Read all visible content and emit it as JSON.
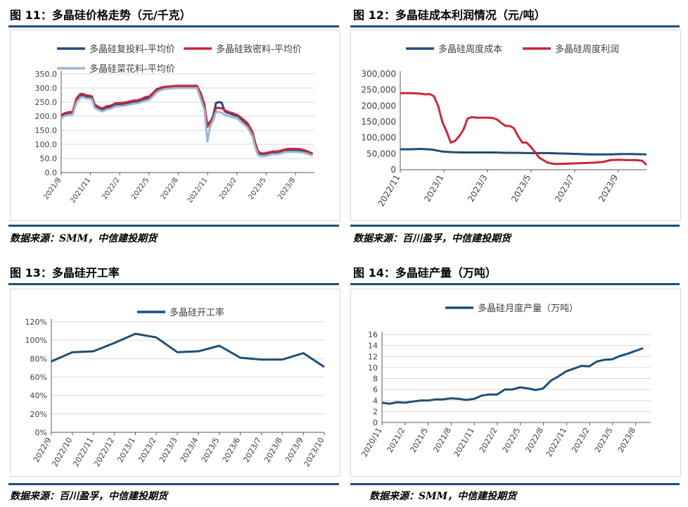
{
  "panels": [
    {
      "title": "图 11：多晶硅价格走势（元/千克）",
      "source": "数据来源：SMM，中信建投期货"
    },
    {
      "title": "图 12：多晶硅成本利润情况（元/吨）",
      "source": "数据来源：百川盈孚，中信建投期货"
    },
    {
      "title": "图 13：多晶硅开工率",
      "source": "数据来源：百川盈孚，中信建投期货"
    },
    {
      "title": "图 14：多晶硅产量（万吨）",
      "source": "数据来源：SMM，中信建投期货"
    }
  ],
  "colors": {
    "rule": "#1f4e79",
    "navy": "#1f4e79",
    "red": "#c8283d",
    "light": "#9db7d0",
    "grid": "#d9d9d9",
    "axis": "#595959"
  },
  "chart_data": [
    {
      "type": "line",
      "ylim": [
        0,
        350
      ],
      "yticks": [
        "0.0",
        "50.0",
        "100.0",
        "150.0",
        "200.0",
        "250.0",
        "300.0",
        "350.0"
      ],
      "x_tick_labels": [
        "2021/8",
        "2021/11",
        "2022/2",
        "2022/5",
        "2022/8",
        "2022/11",
        "2023/2",
        "2023/5",
        "2023/8"
      ],
      "x_range": [
        0,
        26.5
      ],
      "legend": "top",
      "grid": true,
      "series": [
        {
          "name": "多晶硅复投料-平均价",
          "color": "#1f4e79",
          "x": [
            0,
            0.3,
            0.7,
            1.2,
            1.6,
            2,
            2.3,
            2.6,
            2.9,
            3.2,
            3.5,
            3.9,
            4.3,
            4.8,
            5.1,
            5.4,
            5.7,
            6.1,
            6.5,
            7,
            7.5,
            8,
            8.4,
            8.8,
            9.2,
            9.6,
            10,
            10.4,
            10.8,
            11.4,
            12,
            12.6,
            13.2,
            13.7,
            14.2,
            14.6,
            15,
            15.3,
            15.6,
            15.9,
            16.2,
            16.5,
            16.8,
            17.1,
            17.3,
            17.6,
            18,
            18.5,
            19,
            19.5,
            20,
            20.3,
            20.6,
            20.9,
            21.2,
            21.5,
            21.8,
            22.2,
            22.6,
            23,
            23.4,
            23.8,
            24.2,
            24.6,
            25,
            25.4,
            25.8,
            26.3
          ],
          "values": [
            199,
            206,
            210,
            212,
            255,
            274,
            275,
            270,
            270,
            268,
            238,
            229,
            223,
            230,
            232,
            236,
            241,
            242,
            243,
            246,
            250,
            252,
            256,
            262,
            265,
            277,
            292,
            298,
            302,
            303,
            305,
            305,
            305,
            305,
            305,
            270,
            230,
            170,
            180,
            200,
            247,
            250,
            248,
            218,
            213,
            210,
            205,
            200,
            185,
            170,
            140,
            100,
            70,
            66,
            66,
            66,
            70,
            72,
            72,
            75,
            80,
            80,
            80,
            80,
            78,
            75,
            70,
            63
          ]
        },
        {
          "name": "多晶硅致密料-平均价",
          "color": "#c8283d",
          "x": [
            0,
            0.3,
            0.7,
            1.2,
            1.6,
            2,
            2.3,
            2.6,
            2.9,
            3.2,
            3.5,
            3.9,
            4.3,
            4.8,
            5.1,
            5.4,
            5.7,
            6.1,
            6.5,
            7,
            7.5,
            8,
            8.4,
            8.8,
            9.2,
            9.6,
            10,
            10.4,
            10.8,
            11.4,
            12,
            12.6,
            13.2,
            13.7,
            14.2,
            14.6,
            15,
            15.3,
            15.6,
            15.9,
            16.2,
            16.5,
            16.8,
            17.1,
            17.3,
            17.6,
            18,
            18.5,
            19,
            19.5,
            20,
            20.3,
            20.6,
            20.9,
            21.2,
            21.5,
            21.8,
            22.2,
            22.6,
            23,
            23.4,
            23.8,
            24.2,
            24.6,
            25,
            25.4,
            25.8,
            26.3
          ],
          "values": [
            203,
            210,
            214,
            216,
            263,
            279,
            279,
            274,
            273,
            271,
            242,
            233,
            228,
            236,
            237,
            241,
            246,
            247,
            248,
            251,
            255,
            257,
            261,
            268,
            270,
            282,
            296,
            301,
            304,
            306,
            308,
            308,
            308,
            308,
            308,
            282,
            240,
            162,
            178,
            195,
            230,
            229,
            228,
            222,
            218,
            214,
            210,
            203,
            190,
            175,
            145,
            105,
            75,
            68,
            68,
            70,
            72,
            75,
            75,
            78,
            82,
            84,
            84,
            84,
            83,
            80,
            75,
            67
          ]
        },
        {
          "name": "多晶硅菜花料-平均价",
          "color": "#9db7d0",
          "x": [
            0,
            0.3,
            0.7,
            1.2,
            1.6,
            2,
            2.3,
            2.6,
            2.9,
            3.2,
            3.5,
            3.9,
            4.3,
            4.8,
            5.1,
            5.4,
            5.7,
            6.1,
            6.5,
            7,
            7.5,
            8,
            8.4,
            8.8,
            9.2,
            9.6,
            10,
            10.4,
            10.8,
            11.4,
            12,
            12.6,
            13.2,
            13.7,
            14.2,
            14.6,
            15,
            15.3,
            15.6,
            15.9,
            16.2,
            16.5,
            16.8,
            17.1,
            17.3,
            17.6,
            18,
            18.5,
            19,
            19.5,
            20,
            20.3,
            20.6,
            20.9,
            21.2,
            21.5,
            21.8,
            22.2,
            22.6,
            23,
            23.4,
            23.8,
            24.2,
            24.6,
            25,
            25.4,
            25.8,
            26.3
          ],
          "values": [
            193,
            200,
            204,
            206,
            248,
            266,
            268,
            263,
            262,
            260,
            230,
            222,
            217,
            224,
            226,
            230,
            235,
            236,
            237,
            240,
            244,
            246,
            250,
            255,
            258,
            270,
            285,
            292,
            296,
            298,
            300,
            300,
            300,
            300,
            300,
            262,
            220,
            110,
            165,
            185,
            215,
            215,
            212,
            205,
            202,
            200,
            196,
            190,
            175,
            160,
            130,
            90,
            62,
            58,
            58,
            60,
            63,
            65,
            65,
            68,
            72,
            73,
            73,
            73,
            72,
            70,
            66,
            60
          ]
        }
      ]
    },
    {
      "type": "line",
      "ylim": [
        0,
        300000
      ],
      "yticks": [
        "0",
        "50,000",
        "100,000",
        "150,000",
        "200,000",
        "250,000",
        "300,000"
      ],
      "x_tick_labels": [
        "2022/11",
        "2023/1",
        "2023/3",
        "2023/5",
        "2023/7",
        "2023/9"
      ],
      "x_range": [
        0,
        11.7
      ],
      "legend": "top",
      "grid": false,
      "series": [
        {
          "name": "多晶硅周度成本",
          "color": "#1f4e79",
          "x": [
            0,
            0.5,
            1,
            1.5,
            2,
            2.5,
            3,
            3.5,
            4,
            4.5,
            5,
            5.5,
            6,
            6.5,
            7,
            7.5,
            8,
            8.5,
            9,
            9.5,
            10,
            10.5,
            11,
            11.7
          ],
          "values": [
            64000,
            64000,
            65000,
            63000,
            57000,
            55000,
            54000,
            54000,
            54000,
            54000,
            53000,
            53000,
            52000,
            52000,
            52000,
            51000,
            50000,
            49000,
            48000,
            48000,
            48000,
            49000,
            49000,
            48000
          ]
        },
        {
          "name": "多晶硅周度利润",
          "color": "#c8283d",
          "x": [
            0,
            0.5,
            0.8,
            1,
            1.2,
            1.4,
            1.6,
            1.8,
            2,
            2.2,
            2.4,
            2.6,
            2.8,
            3,
            3.2,
            3.4,
            3.6,
            3.8,
            4,
            4.2,
            4.4,
            4.6,
            4.8,
            5,
            5.2,
            5.4,
            5.6,
            5.8,
            6,
            6.2,
            6.4,
            6.6,
            6.8,
            7,
            7.3,
            7.6,
            8,
            8.4,
            8.8,
            9.2,
            9.6,
            10,
            10.4,
            10.8,
            11.2,
            11.5,
            11.7
          ],
          "values": [
            240000,
            240000,
            239000,
            238000,
            236000,
            237000,
            230000,
            200000,
            150000,
            120000,
            85000,
            90000,
            105000,
            125000,
            160000,
            165000,
            163000,
            163000,
            163000,
            163000,
            162000,
            157000,
            147000,
            137000,
            137000,
            130000,
            105000,
            85000,
            85000,
            72000,
            55000,
            38000,
            30000,
            22000,
            18000,
            18000,
            19000,
            20000,
            21000,
            22000,
            24000,
            30000,
            31000,
            30000,
            30000,
            28000,
            15000
          ]
        }
      ]
    },
    {
      "type": "line",
      "ylim": [
        0,
        1.2
      ],
      "yticks": [
        "0%",
        "20%",
        "40%",
        "60%",
        "80%",
        "100%",
        "120%"
      ],
      "categories": [
        "2022/9",
        "2022/10",
        "2022/11",
        "2022/12",
        "2023/1",
        "2023/2",
        "2023/3",
        "2023/4",
        "2023/5",
        "2023/6",
        "2023/7",
        "2023/8",
        "2023/9",
        "2023/10"
      ],
      "legend": "top",
      "grid": true,
      "series": [
        {
          "name": "多晶硅开工率",
          "color": "#1f4e79",
          "values": [
            0.77,
            0.87,
            0.88,
            0.97,
            1.07,
            1.03,
            0.87,
            0.88,
            0.94,
            0.81,
            0.79,
            0.79,
            0.86,
            0.71
          ]
        }
      ]
    },
    {
      "type": "line",
      "ylim": [
        0,
        16
      ],
      "yticks": [
        "0",
        "2",
        "4",
        "6",
        "8",
        "10",
        "12",
        "14",
        "16"
      ],
      "x_tick_labels": [
        "2020/11",
        "2021/2",
        "2021/5",
        "2021/8",
        "2021/11",
        "2022/2",
        "2022/5",
        "2022/8",
        "2022/11",
        "2023/2",
        "2023/5",
        "2023/8"
      ],
      "x_range": [
        0,
        35
      ],
      "legend": "top",
      "grid": true,
      "series": [
        {
          "name": "多晶硅月度产量（万吨）",
          "color": "#1f4e79",
          "x": [
            0,
            1,
            2,
            3,
            4,
            5,
            6,
            7,
            8,
            9,
            10,
            11,
            12,
            13,
            14,
            15,
            16,
            17,
            18,
            19,
            20,
            21,
            22,
            23,
            24,
            25,
            26,
            27,
            28,
            29,
            30,
            31,
            32,
            33,
            34
          ],
          "values": [
            3.6,
            3.4,
            3.7,
            3.6,
            3.8,
            4.0,
            4.0,
            4.2,
            4.2,
            4.4,
            4.3,
            4.1,
            4.3,
            4.9,
            5.1,
            5.1,
            6.0,
            6.0,
            6.4,
            6.2,
            5.9,
            6.2,
            7.6,
            8.4,
            9.3,
            9.8,
            10.3,
            10.2,
            11.1,
            11.4,
            11.5,
            12.1,
            12.5,
            13.0,
            13.5
          ]
        }
      ]
    }
  ]
}
